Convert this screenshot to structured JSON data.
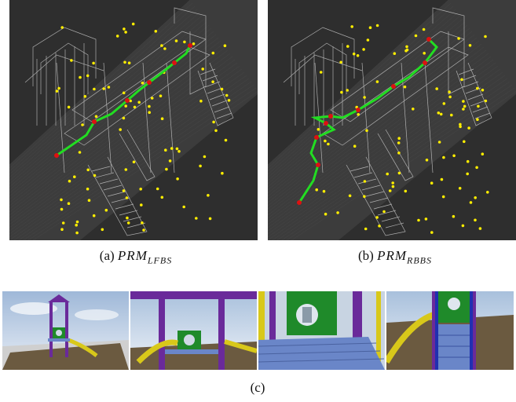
{
  "figure": {
    "subfigures": [
      {
        "id": "a",
        "prefix": "(a) ",
        "math": "PRM",
        "subscript": "LFBS"
      },
      {
        "id": "b",
        "prefix": "(b) ",
        "math": "PRM",
        "subscript": "RBBS"
      }
    ],
    "bottom_caption": "(c)"
  },
  "colors": {
    "background_dark": "#3c3c3c",
    "path_green": "#22dd22",
    "node_red": "#dd1111",
    "sample_yellow": "#ffee00",
    "wireframe": "#d8d8d8",
    "structure_purple": "#6a2a9a",
    "panel_green": "#1f8a2a",
    "slide_yellow": "#d8c81a",
    "deck_blue": "#6a86c8",
    "ground_brown": "#6b5a40"
  }
}
